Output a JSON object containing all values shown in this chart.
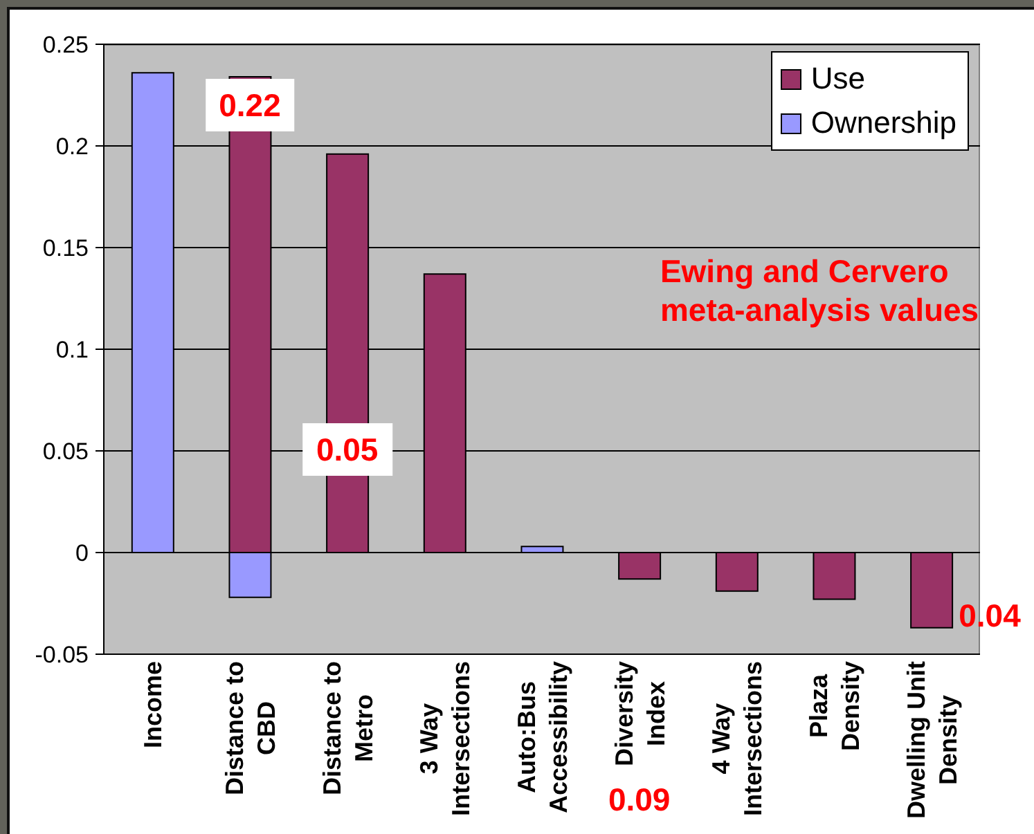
{
  "chart_data": {
    "type": "bar",
    "stacked": true,
    "categories": [
      "Income",
      "Distance to CBD",
      "Distance to Metro",
      "3 Way Intersections",
      "Auto:Bus Accessibility",
      "Diversity Index",
      "4 Way Intersections",
      "Plaza Density",
      "Dwelling Unit Density"
    ],
    "series": [
      {
        "name": "Use",
        "color": "#993366",
        "values": [
          null,
          0.234,
          0.196,
          0.137,
          null,
          -0.013,
          -0.019,
          -0.023,
          -0.037
        ]
      },
      {
        "name": "Ownership",
        "color": "#9999ff",
        "values": [
          0.236,
          -0.022,
          null,
          null,
          0.003,
          null,
          null,
          null,
          null
        ]
      }
    ],
    "ylim": [
      -0.05,
      0.25
    ],
    "yticks": [
      -0.05,
      0,
      0.05,
      0.1,
      0.15,
      0.2,
      0.25
    ],
    "grid": "y",
    "legend": "top right",
    "annotations": [
      "0.22",
      "0.05",
      "0.09",
      "0.04",
      "Ewing and Cervero meta-analysis values"
    ]
  }
}
